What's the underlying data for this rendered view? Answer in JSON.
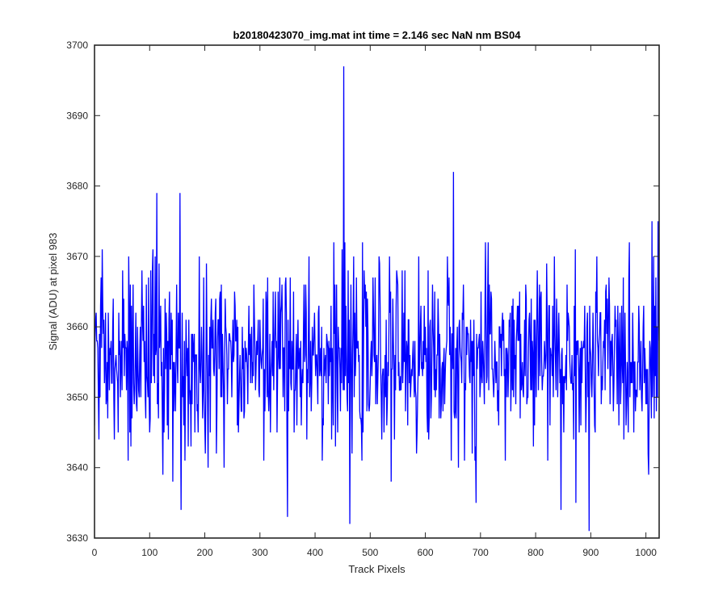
{
  "chart_data": {
    "type": "line",
    "title": "b20180423070_img.mat int time = 2.146 sec  NaN nm BS04",
    "xlabel": "Track Pixels",
    "ylabel": "Signal (ADU) at pixel 983",
    "xlim": [
      0,
      1024
    ],
    "ylim": [
      3630,
      3700
    ],
    "xticks": [
      0,
      100,
      200,
      300,
      400,
      500,
      600,
      700,
      800,
      900,
      1000
    ],
    "yticks": [
      3630,
      3640,
      3650,
      3660,
      3670,
      3680,
      3690,
      3700
    ],
    "grid": false,
    "line_color": "#0000ff",
    "series": [
      {
        "baseline": 3655.5,
        "x_start": 0,
        "x_end": 1024,
        "highlighted_points": [
          {
            "x": 452,
            "y": 3697
          },
          {
            "x": 651,
            "y": 3682
          },
          {
            "x": 113,
            "y": 3679
          },
          {
            "x": 155,
            "y": 3679
          },
          {
            "x": 1011,
            "y": 3675
          },
          {
            "x": 1022,
            "y": 3675
          },
          {
            "x": 463,
            "y": 3632
          },
          {
            "x": 897,
            "y": 3631
          },
          {
            "x": 350,
            "y": 3633
          },
          {
            "x": 157,
            "y": 3634
          },
          {
            "x": 846,
            "y": 3634
          },
          {
            "x": 873,
            "y": 3635
          },
          {
            "x": 692,
            "y": 3635
          }
        ]
      }
    ]
  }
}
